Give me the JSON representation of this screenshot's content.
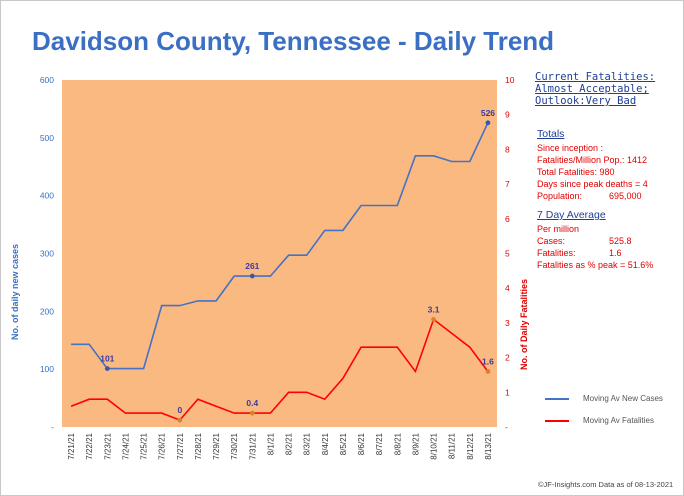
{
  "title": "Davidson County, Tennessee - Daily Trend",
  "status": {
    "line1": "Current Fatalities:",
    "line2": "Almost Acceptable;",
    "line3": "Outlook:Very Bad"
  },
  "totals": {
    "heading": "Totals",
    "since": "Since inception :",
    "fatalities_per_million_label": "Fatalities/Million Pop.: 1412",
    "total_fatalities_label": "Total Fatalities: 980",
    "days_since_peak_label": "Days since peak deaths = 4",
    "population_label": "Population:",
    "population_value": "695,000"
  },
  "avg7": {
    "heading": "7 Day Average",
    "per_million": "Per million",
    "cases_label": "Cases:",
    "cases_value": "525.8",
    "fatalities_label": "Fatalities:",
    "fatalities_value": "1.6",
    "pct_peak_label": "Fatalities as % peak = 51.6%"
  },
  "footer": "©JF-Insights.com  Data as of 08-13-2021",
  "colors": {
    "plot_bg": "#fbb982",
    "cases": "#4472c4",
    "fatalities": "#ff0000",
    "axis_left": "#3a6fc4",
    "axis_right": "#e00000"
  },
  "chart_data": {
    "type": "line",
    "categories": [
      "7/21/21",
      "7/22/21",
      "7/23/21",
      "7/24/21",
      "7/25/21",
      "7/26/21",
      "7/27/21",
      "7/28/21",
      "7/29/21",
      "7/30/21",
      "7/31/21",
      "8/1/21",
      "8/2/21",
      "8/3/21",
      "8/4/21",
      "8/5/21",
      "8/6/21",
      "8/7/21",
      "8/8/21",
      "8/9/21",
      "8/10/21",
      "8/11/21",
      "8/12/21",
      "8/13/21"
    ],
    "series": [
      {
        "name": "Moving Av New Cases",
        "axis": "left",
        "values": [
          143,
          143,
          101,
          101,
          101,
          210,
          210,
          218,
          218,
          261,
          261,
          261,
          297,
          297,
          340,
          340,
          383,
          383,
          383,
          469,
          469,
          459,
          459,
          526
        ]
      },
      {
        "name": "Moving Av Fatalities",
        "axis": "right",
        "values": [
          0.6,
          0.8,
          0.8,
          0.4,
          0.4,
          0.4,
          0.2,
          0.8,
          0.6,
          0.4,
          0.4,
          0.4,
          1.0,
          1.0,
          0.8,
          1.4,
          2.3,
          2.3,
          2.3,
          1.6,
          3.1,
          2.7,
          2.3,
          1.6
        ]
      }
    ],
    "annotations": [
      {
        "series": 0,
        "index": 2,
        "label": "101"
      },
      {
        "series": 0,
        "index": 10,
        "label": "261"
      },
      {
        "series": 0,
        "index": 23,
        "label": "526"
      },
      {
        "series": 1,
        "index": 6,
        "label": "0"
      },
      {
        "series": 1,
        "index": 10,
        "label": "0.4"
      },
      {
        "series": 1,
        "index": 20,
        "label": "3.1"
      },
      {
        "series": 1,
        "index": 23,
        "label": "1.6"
      }
    ],
    "ylabel_left": "No. of daily new  cases",
    "ylabel_right": "No. of Daily Fatalities",
    "yticks_left": [
      "-",
      "100",
      "200",
      "300",
      "400",
      "500",
      "600"
    ],
    "yticks_right": [
      "-",
      "1",
      "2",
      "3",
      "4",
      "5",
      "6",
      "7",
      "8",
      "9",
      "10"
    ],
    "ylim_left": [
      0,
      600
    ],
    "ylim_right": [
      0,
      10
    ],
    "legend": [
      "Moving Av New Cases",
      "Moving Av Fatalities"
    ]
  }
}
